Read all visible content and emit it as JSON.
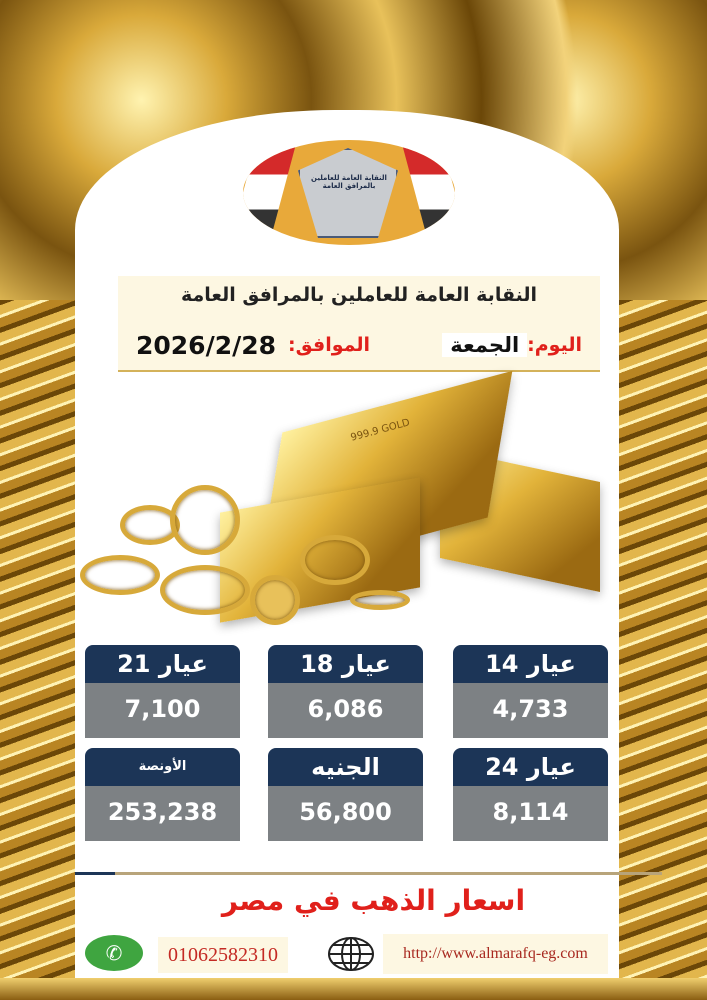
{
  "logo": {
    "text": "النقابة العامة للعاملين بالمرافق العامة"
  },
  "header": {
    "organization": "النقابة العامة للعاملين بالمرافق العامة",
    "day_label": "اليوم:",
    "day": "الجمعة",
    "date_label": "الموافق:",
    "date": "2026/2/28"
  },
  "image": {
    "bar_text": "999.9 GOLD"
  },
  "prices": [
    {
      "label": "عيار 14",
      "value": "4,733"
    },
    {
      "label": "عيار 18",
      "value": "6,086"
    },
    {
      "label": "عيار 21",
      "value": "7,100"
    },
    {
      "label": "عيار 24",
      "value": "8,114"
    },
    {
      "label": "الجنيه",
      "value": "56,800"
    },
    {
      "label": "الأونصة",
      "value": "253,238"
    }
  ],
  "footer": {
    "headline": "اسعار الذهب في مصر",
    "phone": "01062582310",
    "url": "http://www.almarafq-eg.com"
  },
  "colors": {
    "card_header": "#1c3557",
    "card_value": "#7d8184",
    "accent_red": "#e0201b",
    "whatsapp": "#3fa540",
    "logo_bg": "#e8a93a"
  }
}
